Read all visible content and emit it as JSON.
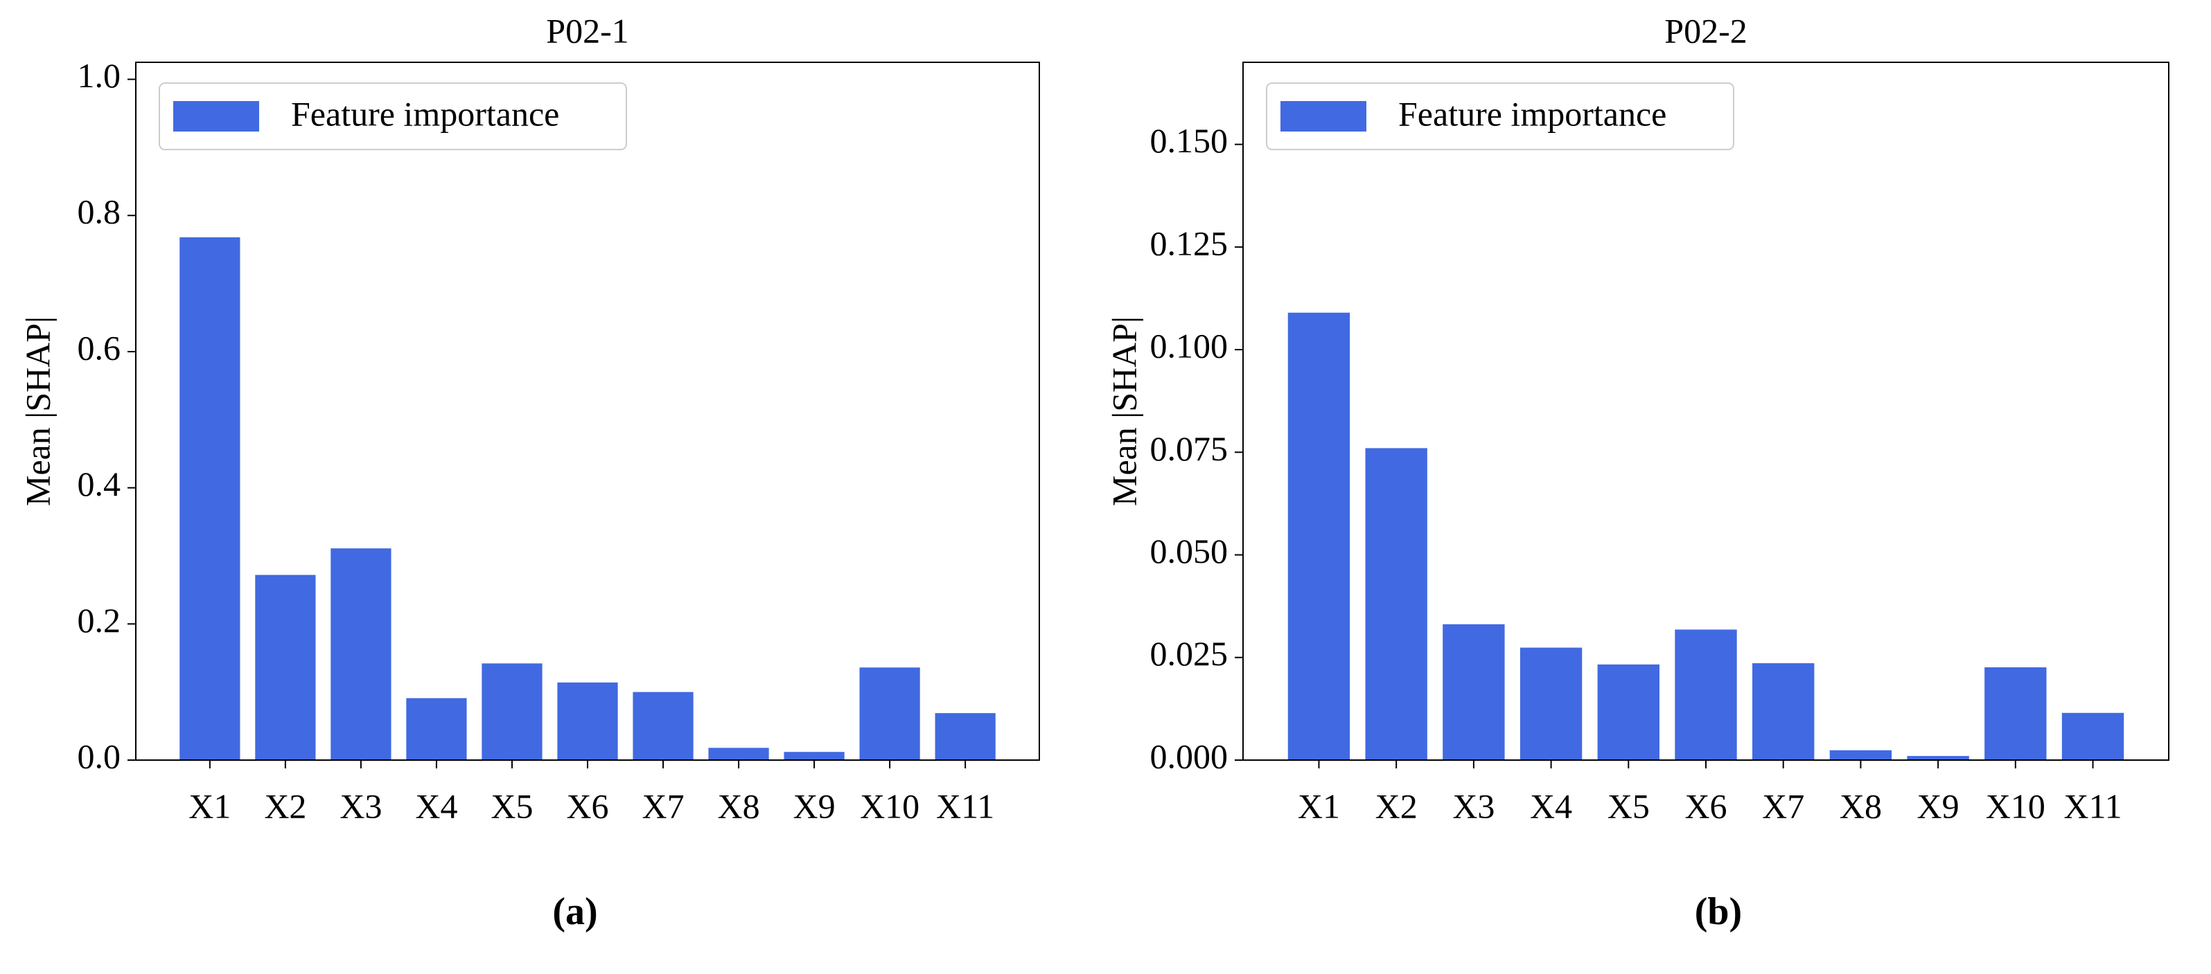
{
  "chart_data": [
    {
      "type": "bar",
      "title": "P02-1",
      "y_label": "Mean |SHAP|",
      "caption": "(a)",
      "categories": [
        "X1",
        "X2",
        "X3",
        "X4",
        "X5",
        "X6",
        "X7",
        "X8",
        "X9",
        "X10",
        "X11"
      ],
      "series": [
        {
          "name": "Feature importance",
          "color": "#4169e1",
          "values": [
            0.768,
            0.272,
            0.311,
            0.091,
            0.142,
            0.114,
            0.1,
            0.018,
            0.012,
            0.136,
            0.069
          ]
        }
      ],
      "ylim": [
        0,
        1.025
      ],
      "yticks": [
        {
          "value": 0,
          "label": "0.0"
        },
        0.2,
        0.4,
        0.6,
        0.8,
        {
          "value": 1,
          "label": "1.0"
        }
      ],
      "legend": "upper left"
    },
    {
      "type": "bar",
      "title": "P02-2",
      "y_label": "Mean |SHAP|",
      "caption": "(b)",
      "categories": [
        "X1",
        "X2",
        "X3",
        "X4",
        "X5",
        "X6",
        "X7",
        "X8",
        "X9",
        "X10",
        "X11"
      ],
      "series": [
        {
          "name": "Feature importance",
          "color": "#4169e1",
          "values": [
            0.109,
            0.076,
            0.0331,
            0.0274,
            0.0233,
            0.0318,
            0.0236,
            0.0024,
            0.001,
            0.0226,
            0.0115
          ]
        }
      ],
      "ylim": [
        0,
        0.17
      ],
      "yticks": [
        {
          "value": 0,
          "label": "0.000"
        },
        {
          "value": 0.025,
          "label": "0.025"
        },
        {
          "value": 0.05,
          "label": "0.050"
        },
        {
          "value": 0.075,
          "label": "0.075"
        },
        {
          "value": 0.1,
          "label": "0.100"
        },
        {
          "value": 0.125,
          "label": "0.125"
        },
        {
          "value": 0.15,
          "label": "0.150"
        }
      ],
      "legend": "upper left"
    }
  ]
}
